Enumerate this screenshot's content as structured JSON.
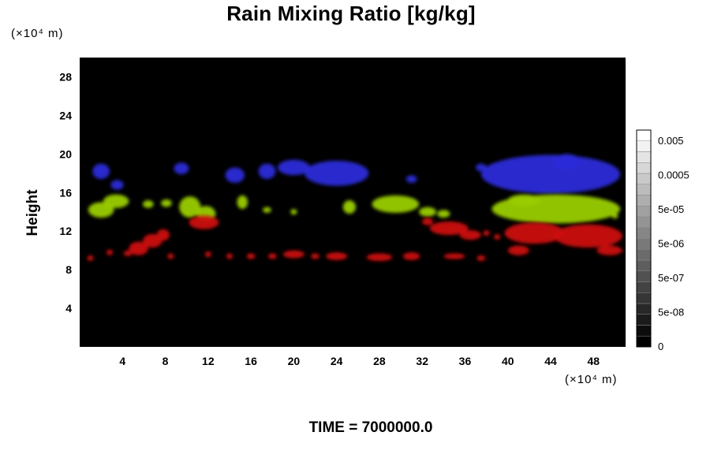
{
  "chart_data": {
    "type": "heatmap",
    "title": "Rain Mixing Ratio [kg/kg]",
    "ylabel": "Height",
    "y_unit": "(×10⁴ m)",
    "x_unit": "(×10⁴ m)",
    "xlim": [
      0,
      51
    ],
    "ylim": [
      0,
      30
    ],
    "x_ticks": [
      4,
      8,
      12,
      16,
      20,
      24,
      28,
      32,
      36,
      40,
      44,
      48
    ],
    "y_ticks": [
      4,
      8,
      12,
      16,
      20,
      24,
      28
    ],
    "background_color": "#000000",
    "layers": [
      {
        "name": "upper",
        "color": "#2a2ad8",
        "blobs": [
          {
            "x": 2.0,
            "y": 18.2,
            "rx": 0.8,
            "ry": 0.8
          },
          {
            "x": 3.5,
            "y": 16.8,
            "rx": 0.6,
            "ry": 0.5
          },
          {
            "x": 9.5,
            "y": 18.5,
            "rx": 0.7,
            "ry": 0.6
          },
          {
            "x": 14.5,
            "y": 17.8,
            "rx": 0.9,
            "ry": 0.8
          },
          {
            "x": 17.5,
            "y": 18.2,
            "rx": 0.8,
            "ry": 0.8
          },
          {
            "x": 20.0,
            "y": 18.6,
            "rx": 1.5,
            "ry": 0.8
          },
          {
            "x": 24.0,
            "y": 18.0,
            "rx": 3.0,
            "ry": 1.3
          },
          {
            "x": 31.0,
            "y": 17.4,
            "rx": 0.5,
            "ry": 0.4
          },
          {
            "x": 37.5,
            "y": 18.6,
            "rx": 0.5,
            "ry": 0.4
          },
          {
            "x": 44.0,
            "y": 17.9,
            "rx": 6.5,
            "ry": 2.0
          },
          {
            "x": 45.5,
            "y": 19.2,
            "rx": 1.3,
            "ry": 0.8
          }
        ]
      },
      {
        "name": "middle",
        "color": "#9acd00",
        "blobs": [
          {
            "x": 2.0,
            "y": 14.2,
            "rx": 1.2,
            "ry": 0.8
          },
          {
            "x": 3.4,
            "y": 15.1,
            "rx": 1.2,
            "ry": 0.7
          },
          {
            "x": 6.4,
            "y": 14.8,
            "rx": 0.5,
            "ry": 0.4
          },
          {
            "x": 8.1,
            "y": 14.9,
            "rx": 0.5,
            "ry": 0.4
          },
          {
            "x": 10.3,
            "y": 14.5,
            "rx": 1.0,
            "ry": 1.1
          },
          {
            "x": 11.8,
            "y": 13.8,
            "rx": 0.9,
            "ry": 0.8
          },
          {
            "x": 15.2,
            "y": 15.0,
            "rx": 0.5,
            "ry": 0.7
          },
          {
            "x": 17.5,
            "y": 14.2,
            "rx": 0.4,
            "ry": 0.3
          },
          {
            "x": 20.0,
            "y": 14.0,
            "rx": 0.3,
            "ry": 0.3
          },
          {
            "x": 25.2,
            "y": 14.5,
            "rx": 0.6,
            "ry": 0.7
          },
          {
            "x": 29.5,
            "y": 14.8,
            "rx": 2.2,
            "ry": 0.9
          },
          {
            "x": 32.5,
            "y": 14.0,
            "rx": 0.8,
            "ry": 0.5
          },
          {
            "x": 34.0,
            "y": 13.8,
            "rx": 0.6,
            "ry": 0.4
          },
          {
            "x": 44.5,
            "y": 14.3,
            "rx": 6.0,
            "ry": 1.5
          },
          {
            "x": 41.5,
            "y": 15.2,
            "rx": 1.5,
            "ry": 0.6
          },
          {
            "x": 50.0,
            "y": 13.6,
            "rx": 0.3,
            "ry": 0.3
          }
        ]
      },
      {
        "name": "lower",
        "color": "#cc1111",
        "blobs": [
          {
            "x": 1.0,
            "y": 9.2,
            "rx": 0.3,
            "ry": 0.3
          },
          {
            "x": 2.8,
            "y": 9.8,
            "rx": 0.3,
            "ry": 0.3
          },
          {
            "x": 4.5,
            "y": 9.7,
            "rx": 0.4,
            "ry": 0.3
          },
          {
            "x": 5.5,
            "y": 10.2,
            "rx": 0.9,
            "ry": 0.7
          },
          {
            "x": 6.8,
            "y": 11.0,
            "rx": 0.9,
            "ry": 0.7
          },
          {
            "x": 7.8,
            "y": 11.6,
            "rx": 0.6,
            "ry": 0.6
          },
          {
            "x": 8.5,
            "y": 9.4,
            "rx": 0.3,
            "ry": 0.3
          },
          {
            "x": 11.6,
            "y": 12.9,
            "rx": 1.4,
            "ry": 0.7
          },
          {
            "x": 12.0,
            "y": 9.6,
            "rx": 0.3,
            "ry": 0.3
          },
          {
            "x": 14.0,
            "y": 9.4,
            "rx": 0.3,
            "ry": 0.3
          },
          {
            "x": 16.0,
            "y": 9.4,
            "rx": 0.4,
            "ry": 0.3
          },
          {
            "x": 18.0,
            "y": 9.4,
            "rx": 0.4,
            "ry": 0.3
          },
          {
            "x": 20.0,
            "y": 9.6,
            "rx": 1.0,
            "ry": 0.4
          },
          {
            "x": 22.0,
            "y": 9.4,
            "rx": 0.4,
            "ry": 0.3
          },
          {
            "x": 24.0,
            "y": 9.4,
            "rx": 1.0,
            "ry": 0.4
          },
          {
            "x": 28.0,
            "y": 9.3,
            "rx": 1.2,
            "ry": 0.4
          },
          {
            "x": 31.0,
            "y": 9.4,
            "rx": 0.8,
            "ry": 0.4
          },
          {
            "x": 35.0,
            "y": 9.4,
            "rx": 1.0,
            "ry": 0.3
          },
          {
            "x": 37.5,
            "y": 9.2,
            "rx": 0.4,
            "ry": 0.3
          },
          {
            "x": 32.5,
            "y": 13.0,
            "rx": 0.5,
            "ry": 0.4
          },
          {
            "x": 34.5,
            "y": 12.3,
            "rx": 1.8,
            "ry": 0.7
          },
          {
            "x": 36.5,
            "y": 11.6,
            "rx": 1.0,
            "ry": 0.5
          },
          {
            "x": 38.0,
            "y": 11.8,
            "rx": 0.3,
            "ry": 0.3
          },
          {
            "x": 39.0,
            "y": 11.4,
            "rx": 0.3,
            "ry": 0.3
          },
          {
            "x": 41.0,
            "y": 10.0,
            "rx": 1.0,
            "ry": 0.5
          },
          {
            "x": 42.5,
            "y": 11.8,
            "rx": 2.8,
            "ry": 1.1
          },
          {
            "x": 47.5,
            "y": 11.5,
            "rx": 3.2,
            "ry": 1.2
          },
          {
            "x": 49.5,
            "y": 10.0,
            "rx": 1.2,
            "ry": 0.5
          }
        ]
      }
    ],
    "colorbar": {
      "labels": [
        "0.005",
        "0.0005",
        "5e-05",
        "5e-06",
        "5e-07",
        "5e-08",
        "0"
      ],
      "levels": 20
    }
  },
  "footer": "TIME = 7000000.0"
}
